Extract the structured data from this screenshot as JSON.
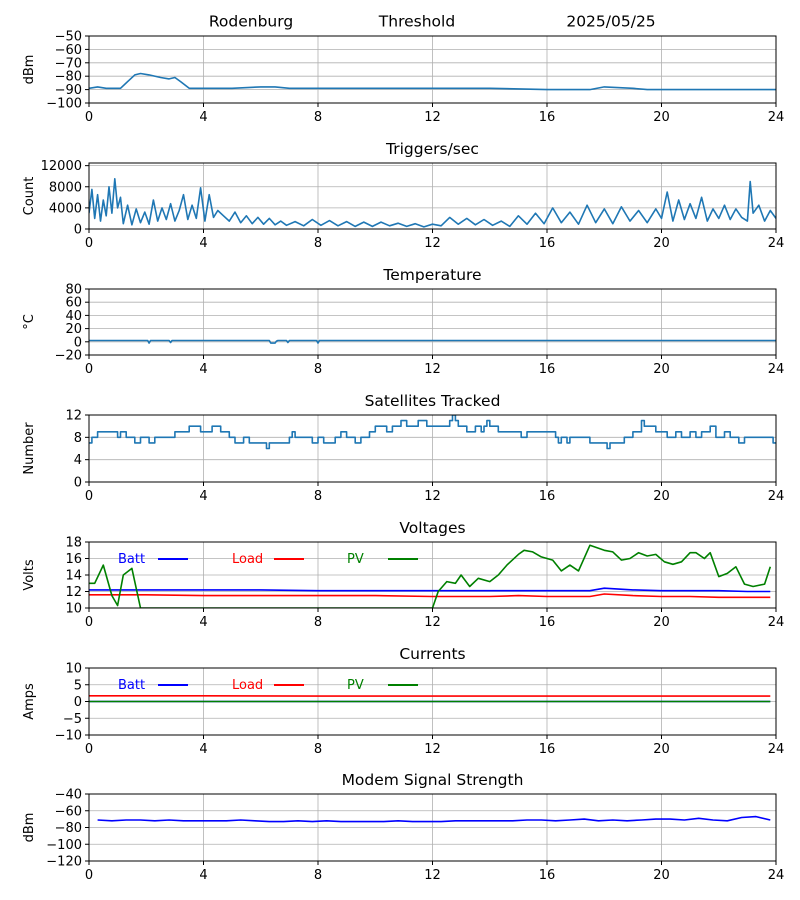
{
  "header": {
    "station": "Rodenburg",
    "mode": "Threshold",
    "date": "2025/05/25"
  },
  "colors": {
    "default": "#1f77b4",
    "batt": "#0000ff",
    "load": "#ff0000",
    "pv": "#008000",
    "grid": "#b0b0b0"
  },
  "chart_data": [
    {
      "type": "line",
      "title": "",
      "ylabel": "dBm",
      "xlim": [
        0,
        24
      ],
      "ylim": [
        -100,
        -50
      ],
      "xticks": [
        0,
        4,
        8,
        12,
        16,
        20,
        24
      ],
      "yticks": [
        -100,
        -90,
        -80,
        -70,
        -60,
        -50
      ],
      "grid": true,
      "series": [
        {
          "color": "#1f77b4",
          "x": [
            0,
            0.3,
            0.6,
            1.1,
            1.6,
            1.8,
            2.1,
            2.5,
            2.8,
            3.0,
            3.2,
            3.5,
            4.0,
            5.0,
            6.0,
            6.5,
            7.0,
            8.0,
            10.0,
            12.0,
            14.0,
            16.0,
            17.5,
            18.0,
            19.0,
            19.5,
            20.0,
            22.0,
            24.0
          ],
          "y": [
            -89,
            -88,
            -89,
            -89,
            -79,
            -78,
            -79,
            -81,
            -82,
            -81,
            -84,
            -89,
            -89,
            -89,
            -88,
            -88,
            -89,
            -89,
            -89,
            -89,
            -89,
            -90,
            -90,
            -88,
            -89,
            -90,
            -90,
            -90,
            -90
          ]
        }
      ]
    },
    {
      "type": "line",
      "title": "Triggers/sec",
      "ylabel": "Count",
      "xlim": [
        0,
        24
      ],
      "ylim": [
        0,
        12500
      ],
      "xticks": [
        0,
        4,
        8,
        12,
        16,
        20,
        24
      ],
      "yticks": [
        0,
        4000,
        8000,
        12000
      ],
      "grid": true,
      "series": [
        {
          "color": "#1f77b4",
          "x": [
            0.0,
            0.1,
            0.2,
            0.3,
            0.4,
            0.5,
            0.6,
            0.7,
            0.8,
            0.9,
            1.0,
            1.1,
            1.2,
            1.35,
            1.5,
            1.65,
            1.8,
            1.95,
            2.1,
            2.25,
            2.4,
            2.55,
            2.7,
            2.85,
            3.0,
            3.15,
            3.3,
            3.45,
            3.6,
            3.75,
            3.9,
            4.05,
            4.2,
            4.35,
            4.5,
            4.7,
            4.9,
            5.1,
            5.3,
            5.5,
            5.7,
            5.9,
            6.1,
            6.3,
            6.5,
            6.7,
            6.9,
            7.2,
            7.5,
            7.8,
            8.1,
            8.4,
            8.7,
            9.0,
            9.3,
            9.6,
            9.9,
            10.2,
            10.5,
            10.8,
            11.1,
            11.4,
            11.7,
            12.0,
            12.3,
            12.6,
            12.9,
            13.2,
            13.5,
            13.8,
            14.1,
            14.4,
            14.7,
            15.0,
            15.3,
            15.6,
            15.9,
            16.2,
            16.5,
            16.8,
            17.1,
            17.4,
            17.7,
            18.0,
            18.3,
            18.6,
            18.9,
            19.2,
            19.5,
            19.8,
            20.0,
            20.2,
            20.4,
            20.6,
            20.8,
            21.0,
            21.2,
            21.4,
            21.6,
            21.8,
            22.0,
            22.2,
            22.4,
            22.6,
            22.8,
            23.0,
            23.1,
            23.2,
            23.4,
            23.6,
            23.8,
            24.0
          ],
          "y": [
            3000,
            7500,
            2000,
            6500,
            1500,
            5500,
            2500,
            8000,
            3000,
            9500,
            4000,
            6000,
            1000,
            4500,
            800,
            3800,
            1200,
            3200,
            900,
            5500,
            1500,
            4000,
            1800,
            4800,
            1500,
            3500,
            6500,
            1800,
            4500,
            2000,
            7800,
            1500,
            6500,
            2200,
            3500,
            2500,
            1500,
            3200,
            1200,
            2500,
            1000,
            2200,
            900,
            2000,
            800,
            1500,
            700,
            1400,
            600,
            1800,
            700,
            1600,
            600,
            1400,
            500,
            1300,
            500,
            1300,
            600,
            1100,
            500,
            1000,
            400,
            900,
            600,
            2200,
            900,
            2000,
            800,
            1800,
            700,
            1500,
            500,
            2500,
            900,
            3000,
            1000,
            4000,
            1200,
            3200,
            900,
            4500,
            1200,
            3800,
            1000,
            4200,
            1500,
            3500,
            1200,
            3800,
            2000,
            7000,
            1500,
            5500,
            1800,
            4800,
            2000,
            6000,
            1500,
            3800,
            2000,
            4500,
            1800,
            3800,
            2200,
            1500,
            9000,
            3000,
            4500,
            1500,
            3500,
            2000
          ]
        }
      ]
    },
    {
      "type": "line",
      "title": "Temperature",
      "ylabel": "°C",
      "xlim": [
        0,
        24
      ],
      "ylim": [
        -20,
        80
      ],
      "xticks": [
        0,
        4,
        8,
        12,
        16,
        20,
        24
      ],
      "yticks": [
        -20,
        0,
        20,
        40,
        60,
        80
      ],
      "grid": true,
      "series": [
        {
          "color": "#1f77b4",
          "x": [
            0,
            2.05,
            2.1,
            2.15,
            2.8,
            2.85,
            2.9,
            6.3,
            6.35,
            6.5,
            6.55,
            6.6,
            6.9,
            6.95,
            7.0,
            7.95,
            8.0,
            8.05,
            24
          ],
          "y": [
            2,
            2,
            -2,
            2,
            2,
            -1,
            2,
            2,
            -2,
            -2,
            1,
            2,
            2,
            -1,
            2,
            2,
            -2,
            2,
            2
          ]
        }
      ]
    },
    {
      "type": "line",
      "title": "Satellites Tracked",
      "ylabel": "Number",
      "xlim": [
        0,
        24
      ],
      "ylim": [
        0,
        12
      ],
      "xticks": [
        0,
        4,
        8,
        12,
        16,
        20,
        24
      ],
      "yticks": [
        0,
        4,
        8,
        12
      ],
      "grid": true,
      "series": [
        {
          "color": "#1f77b4",
          "step": true,
          "x": [
            0,
            0.1,
            0.3,
            1.0,
            1.1,
            1.3,
            1.6,
            1.8,
            2.1,
            2.3,
            2.6,
            3.0,
            3.5,
            3.9,
            4.3,
            4.6,
            4.9,
            5.1,
            5.4,
            5.6,
            6.0,
            6.2,
            6.3,
            6.6,
            7.0,
            7.1,
            7.2,
            7.6,
            7.8,
            8.0,
            8.2,
            8.6,
            8.8,
            9.0,
            9.3,
            9.5,
            9.8,
            10.0,
            10.4,
            10.6,
            10.9,
            11.1,
            11.5,
            11.8,
            12.6,
            12.7,
            12.8,
            12.9,
            13.2,
            13.5,
            13.7,
            13.8,
            13.9,
            14.0,
            14.3,
            14.6,
            14.9,
            15.1,
            15.3,
            15.6,
            15.9,
            16.3,
            16.4,
            16.5,
            16.7,
            16.8,
            17.1,
            17.5,
            17.9,
            18.1,
            18.2,
            18.4,
            18.7,
            19.0,
            19.3,
            19.4,
            19.6,
            19.8,
            20.2,
            20.5,
            20.7,
            21.0,
            21.2,
            21.4,
            21.7,
            21.9,
            22.2,
            22.4,
            22.7,
            22.9,
            23.3,
            23.6,
            23.9,
            24.0
          ],
          "y": [
            7,
            8,
            9,
            8,
            9,
            8,
            7,
            8,
            7,
            8,
            8,
            9,
            10,
            9,
            10,
            9,
            8,
            7,
            8,
            7,
            7,
            6,
            7,
            7,
            8,
            9,
            8,
            8,
            7,
            8,
            7,
            8,
            9,
            8,
            7,
            8,
            9,
            10,
            9,
            10,
            11,
            10,
            11,
            10,
            11,
            12,
            11,
            10,
            9,
            10,
            9,
            10,
            11,
            10,
            9,
            9,
            9,
            8,
            9,
            9,
            9,
            8,
            7,
            8,
            7,
            8,
            8,
            7,
            7,
            6,
            7,
            7,
            8,
            9,
            11,
            10,
            10,
            9,
            8,
            9,
            8,
            9,
            8,
            9,
            10,
            8,
            9,
            8,
            7,
            8,
            8,
            8,
            7,
            7
          ]
        }
      ]
    },
    {
      "type": "line",
      "title": "Voltages",
      "ylabel": "Volts",
      "xlim": [
        0,
        24
      ],
      "ylim": [
        10,
        18
      ],
      "xticks": [
        0,
        4,
        8,
        12,
        16,
        20,
        24
      ],
      "yticks": [
        10,
        12,
        14,
        16,
        18
      ],
      "grid": true,
      "legend": "top-left",
      "series": [
        {
          "name": "Batt",
          "color": "#0000ff",
          "x": [
            0,
            2,
            4,
            6,
            8,
            10,
            12,
            14,
            15,
            16,
            17,
            17.5,
            18,
            19,
            20,
            21,
            22,
            23,
            23.8
          ],
          "y": [
            12.2,
            12.2,
            12.2,
            12.2,
            12.1,
            12.1,
            12.1,
            12.1,
            12.1,
            12.1,
            12.1,
            12.1,
            12.4,
            12.2,
            12.1,
            12.1,
            12.1,
            12.0,
            12.0
          ]
        },
        {
          "name": "Load",
          "color": "#ff0000",
          "x": [
            0,
            2,
            4,
            6,
            8,
            10,
            12,
            14,
            15,
            16,
            17,
            17.5,
            18,
            19,
            20,
            21,
            22,
            23,
            23.8
          ],
          "y": [
            11.6,
            11.6,
            11.5,
            11.5,
            11.5,
            11.5,
            11.4,
            11.4,
            11.5,
            11.4,
            11.4,
            11.4,
            11.7,
            11.5,
            11.4,
            11.4,
            11.3,
            11.3,
            11.3
          ],
          "label_name": "Load"
        },
        {
          "name": "PV",
          "color": "#008000",
          "x": [
            0,
            0.2,
            0.5,
            0.8,
            1.0,
            1.2,
            1.5,
            1.8,
            12.0,
            12.2,
            12.5,
            12.8,
            13.0,
            13.3,
            13.6,
            14.0,
            14.3,
            14.6,
            15.0,
            15.2,
            15.5,
            15.8,
            16.0,
            16.2,
            16.5,
            16.8,
            17.1,
            17.5,
            18.0,
            18.3,
            18.6,
            18.9,
            19.2,
            19.5,
            19.8,
            20.1,
            20.4,
            20.7,
            21.0,
            21.2,
            21.5,
            21.7,
            22.0,
            22.3,
            22.6,
            22.9,
            23.2,
            23.6,
            23.8
          ],
          "y": [
            13.0,
            13.0,
            15.2,
            11.5,
            10.3,
            14.0,
            14.8,
            10.0,
            10.0,
            12.0,
            13.2,
            13.0,
            14.0,
            12.6,
            13.6,
            13.2,
            14.0,
            15.2,
            16.5,
            17.0,
            16.8,
            16.2,
            16.0,
            15.8,
            14.5,
            15.2,
            14.5,
            17.6,
            17.0,
            16.8,
            15.8,
            16.0,
            16.7,
            16.3,
            16.5,
            15.6,
            15.3,
            15.6,
            16.7,
            16.7,
            16.0,
            16.7,
            13.8,
            14.2,
            15.0,
            12.9,
            12.6,
            12.9,
            15.0
          ]
        }
      ]
    },
    {
      "type": "line",
      "title": "Currents",
      "ylabel": "Amps",
      "xlim": [
        0,
        24
      ],
      "ylim": [
        -10,
        10
      ],
      "xticks": [
        0,
        4,
        8,
        12,
        16,
        20,
        24
      ],
      "yticks": [
        -10,
        -5,
        0,
        5,
        10
      ],
      "grid": true,
      "legend": "top-left",
      "series": [
        {
          "name": "Batt",
          "color": "#0000ff",
          "x": [
            0,
            23.8
          ],
          "y": [
            0,
            0
          ]
        },
        {
          "name": "Load",
          "color": "#ff0000",
          "x": [
            0,
            4,
            8,
            12,
            16,
            20,
            23.8
          ],
          "y": [
            1.7,
            1.7,
            1.6,
            1.6,
            1.6,
            1.6,
            1.6
          ]
        },
        {
          "name": "PV",
          "color": "#008000",
          "x": [
            0,
            23.8
          ],
          "y": [
            0,
            0
          ]
        }
      ]
    },
    {
      "type": "line",
      "title": "Modem Signal Strength",
      "ylabel": "dBm",
      "xlim": [
        0,
        24
      ],
      "ylim": [
        -120,
        -40
      ],
      "xticks": [
        0,
        4,
        8,
        12,
        16,
        20,
        24
      ],
      "yticks": [
        -120,
        -100,
        -80,
        -60,
        -40
      ],
      "grid": true,
      "series": [
        {
          "color": "#0000ff",
          "x": [
            0.3,
            0.8,
            1.3,
            1.8,
            2.3,
            2.8,
            3.3,
            3.8,
            4.3,
            4.8,
            5.3,
            5.8,
            6.3,
            6.8,
            7.3,
            7.8,
            8.3,
            8.8,
            9.3,
            9.8,
            10.3,
            10.8,
            11.3,
            11.8,
            12.3,
            12.8,
            13.3,
            13.8,
            14.3,
            14.8,
            15.3,
            15.8,
            16.3,
            16.8,
            17.3,
            17.8,
            18.3,
            18.8,
            19.3,
            19.8,
            20.3,
            20.8,
            21.3,
            21.8,
            22.3,
            22.8,
            23.3,
            23.8
          ],
          "y": [
            -71,
            -72,
            -71,
            -71,
            -72,
            -71,
            -72,
            -72,
            -72,
            -72,
            -71,
            -72,
            -73,
            -73,
            -72,
            -73,
            -72,
            -73,
            -73,
            -73,
            -73,
            -72,
            -73,
            -73,
            -73,
            -72,
            -72,
            -72,
            -72,
            -72,
            -71,
            -71,
            -72,
            -71,
            -70,
            -72,
            -71,
            -72,
            -71,
            -70,
            -70,
            -71,
            -69,
            -71,
            -72,
            -68,
            -67,
            -71
          ]
        }
      ]
    }
  ]
}
